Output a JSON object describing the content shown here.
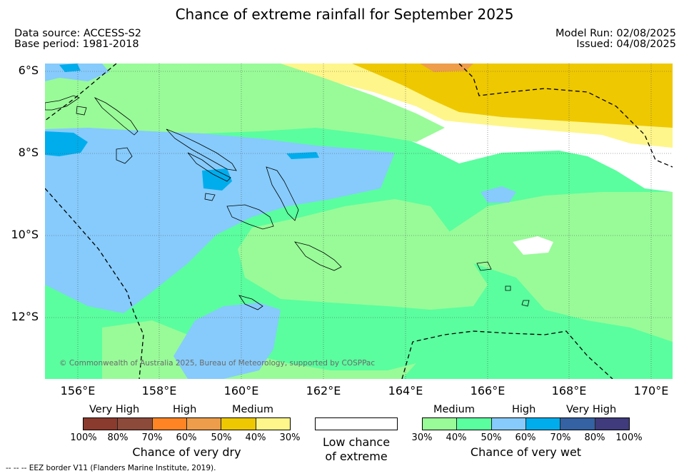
{
  "title": "Chance of extreme rainfall for September 2025",
  "data_source": "Data source: ACCESS-S2",
  "base_period": "Base period: 1981-2018",
  "model_run": "Model Run: 02/08/2025",
  "issued": "Issued: 04/08/2025",
  "lat_labels": [
    "6°S",
    "8°S",
    "10°S",
    "12°S"
  ],
  "lon_labels": [
    "156°E",
    "158°E",
    "160°E",
    "162°E",
    "164°E",
    "166°E",
    "168°E",
    "170°E"
  ],
  "copyright": "© Commonwealth of Australia 2025, Bureau of Meteorology, supported by COSPPac",
  "footer": "--  --  -- EEZ border V11 (Flanders Marine Institute, 2019).",
  "legend_dry": {
    "headings": [
      "Very High",
      "High",
      "Medium"
    ],
    "ticks": [
      "100%",
      "80%",
      "70%",
      "60%",
      "50%",
      "40%",
      "30%"
    ],
    "colors": [
      "#8b3a2e",
      "#8c4a3b",
      "#ff8424",
      "#ee9d4a",
      "#eec800",
      "#fef68a"
    ],
    "title": "Chance of very dry"
  },
  "legend_low": {
    "title_line1": "Low chance",
    "title_line2": "of extreme",
    "color": "#ffffff"
  },
  "legend_wet": {
    "headings": [
      "Medium",
      "High",
      "Very High"
    ],
    "ticks": [
      "30%",
      "40%",
      "50%",
      "60%",
      "70%",
      "80%",
      "100%"
    ],
    "colors": [
      "#98fb98",
      "#5afe9e",
      "#86cbfc",
      "#00adec",
      "#3462a2",
      "#3f3b7c"
    ],
    "title": "Chance of very wet"
  },
  "map_colors": {
    "wet_medium": "#98fb98",
    "wet_medium2": "#5afe9e",
    "wet_high": "#86cbfc",
    "wet_high2": "#00adec",
    "dry_medium": "#eec800",
    "dry_low": "#fef68a",
    "dry_high": "#ee9d4a"
  }
}
